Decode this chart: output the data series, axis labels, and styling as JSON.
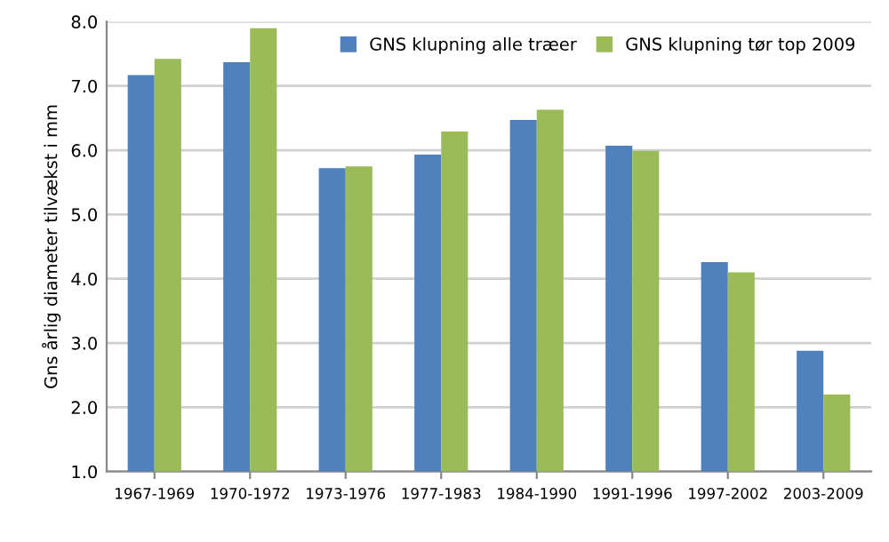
{
  "chart_data": {
    "type": "bar",
    "ylabel": "Gns årlig diameter tilvækst i mm",
    "categories": [
      "1967-1969",
      "1970-1972",
      "1973-1976",
      "1977-1983",
      "1984-1990",
      "1991-1996",
      "1997-2002",
      "2003-2009"
    ],
    "series": [
      {
        "name": "GNS klupning alle træer",
        "color": "#4f81bd",
        "values": [
          7.17,
          7.37,
          5.72,
          5.93,
          6.47,
          6.07,
          4.26,
          2.88
        ]
      },
      {
        "name": "GNS klupning tør top 2009",
        "color": "#9bbb59",
        "values": [
          7.42,
          7.9,
          5.75,
          6.29,
          6.63,
          5.99,
          4.1,
          2.2
        ]
      }
    ],
    "ylim": [
      1.0,
      8.0
    ],
    "yticks": [
      {
        "value": 1,
        "label": "1.0"
      },
      {
        "value": 2,
        "label": "2.0"
      },
      {
        "value": 3,
        "label": "3.0"
      },
      {
        "value": 4,
        "label": "4.0"
      },
      {
        "value": 5,
        "label": "5.0"
      },
      {
        "value": 6,
        "label": "6.0"
      },
      {
        "value": 7,
        "label": "7.0"
      },
      {
        "value": 8,
        "label": "8.0"
      }
    ],
    "grid": "y",
    "legend": "top right"
  }
}
